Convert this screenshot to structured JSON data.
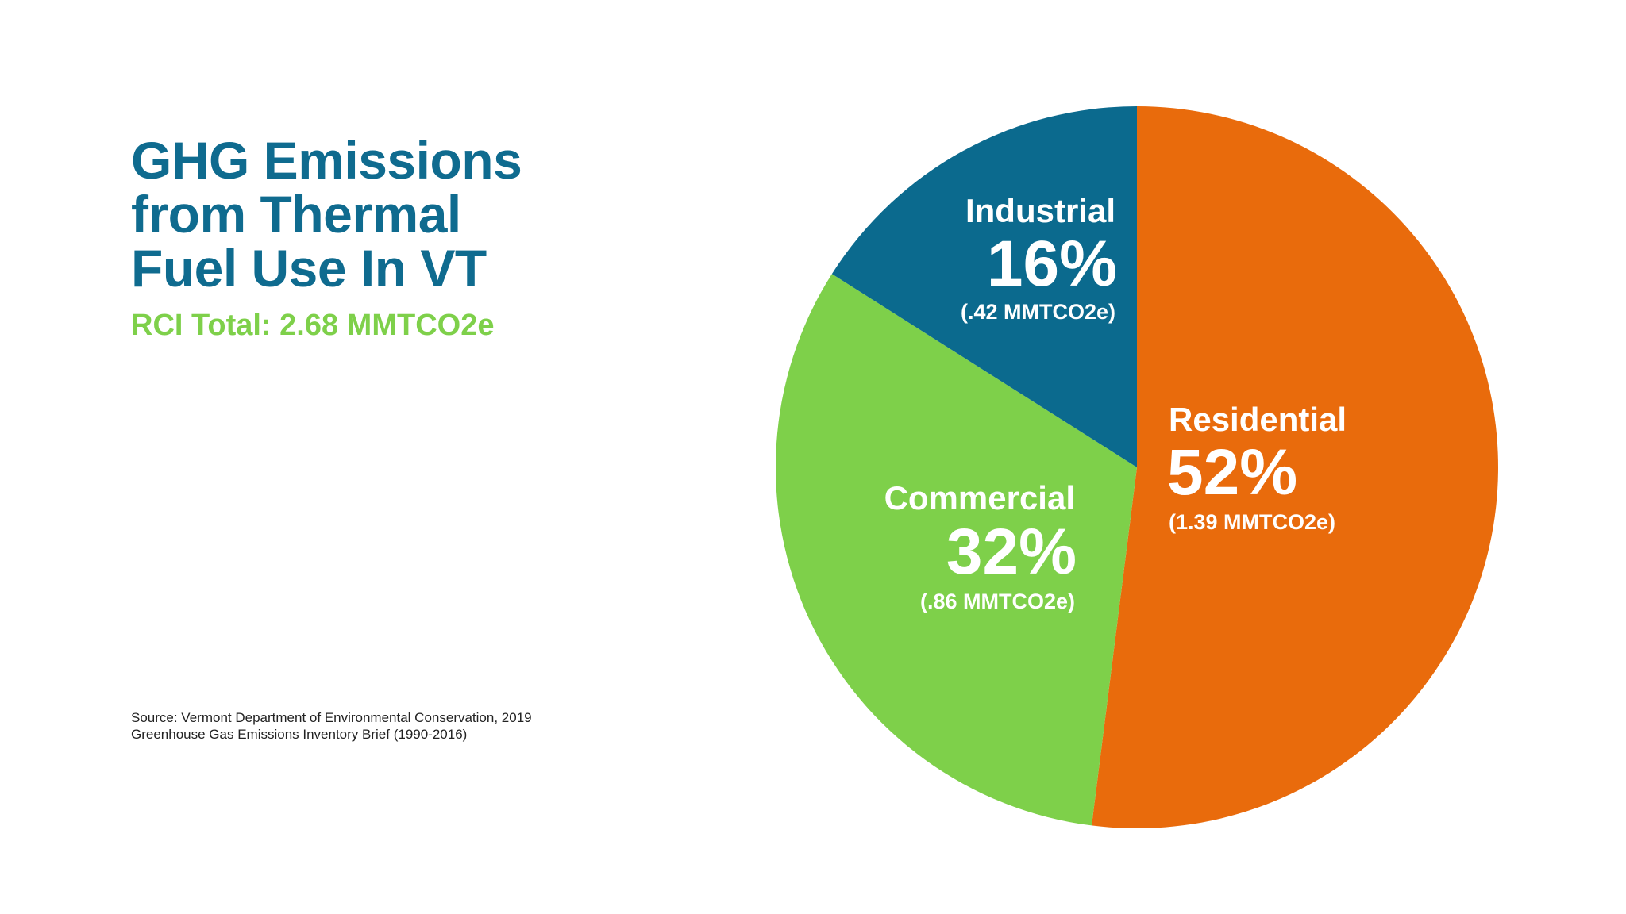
{
  "title_lines": [
    "GHG Emissions",
    "from Thermal",
    "Fuel Use In VT"
  ],
  "subtitle": "RCI Total: 2.68 MMTCO2e",
  "source_lines": [
    "Source: Vermont Department of Environmental Conservation, 2019",
    "Greenhouse Gas Emissions Inventory Brief (1990-2016)"
  ],
  "colors": {
    "title": "#0f6b8f",
    "subtitle": "#7ed04a",
    "residential": "#e96b0c",
    "commercial": "#7ed04a",
    "industrial": "#0b6a8e"
  },
  "chart_data": {
    "type": "pie",
    "title": "GHG Emissions from Thermal Fuel Use In VT",
    "subtitle": "RCI Total: 2.68 MMTCO2e",
    "start_angle_deg": 0,
    "direction": "clockwise",
    "slices": [
      {
        "key": "residential",
        "label": "Residential",
        "percent": 52,
        "percent_label": "52%",
        "value": 1.39,
        "value_label": "(1.39 MMTCO2e)",
        "color": "#e96b0c"
      },
      {
        "key": "commercial",
        "label": "Commercial",
        "percent": 32,
        "percent_label": "32%",
        "value": 0.86,
        "value_label": "(.86 MMTCO2e)",
        "color": "#7ed04a"
      },
      {
        "key": "industrial",
        "label": "Industrial",
        "percent": 16,
        "percent_label": "16%",
        "value": 0.42,
        "value_label": "(.42 MMTCO2e)",
        "color": "#0b6a8e"
      }
    ]
  }
}
